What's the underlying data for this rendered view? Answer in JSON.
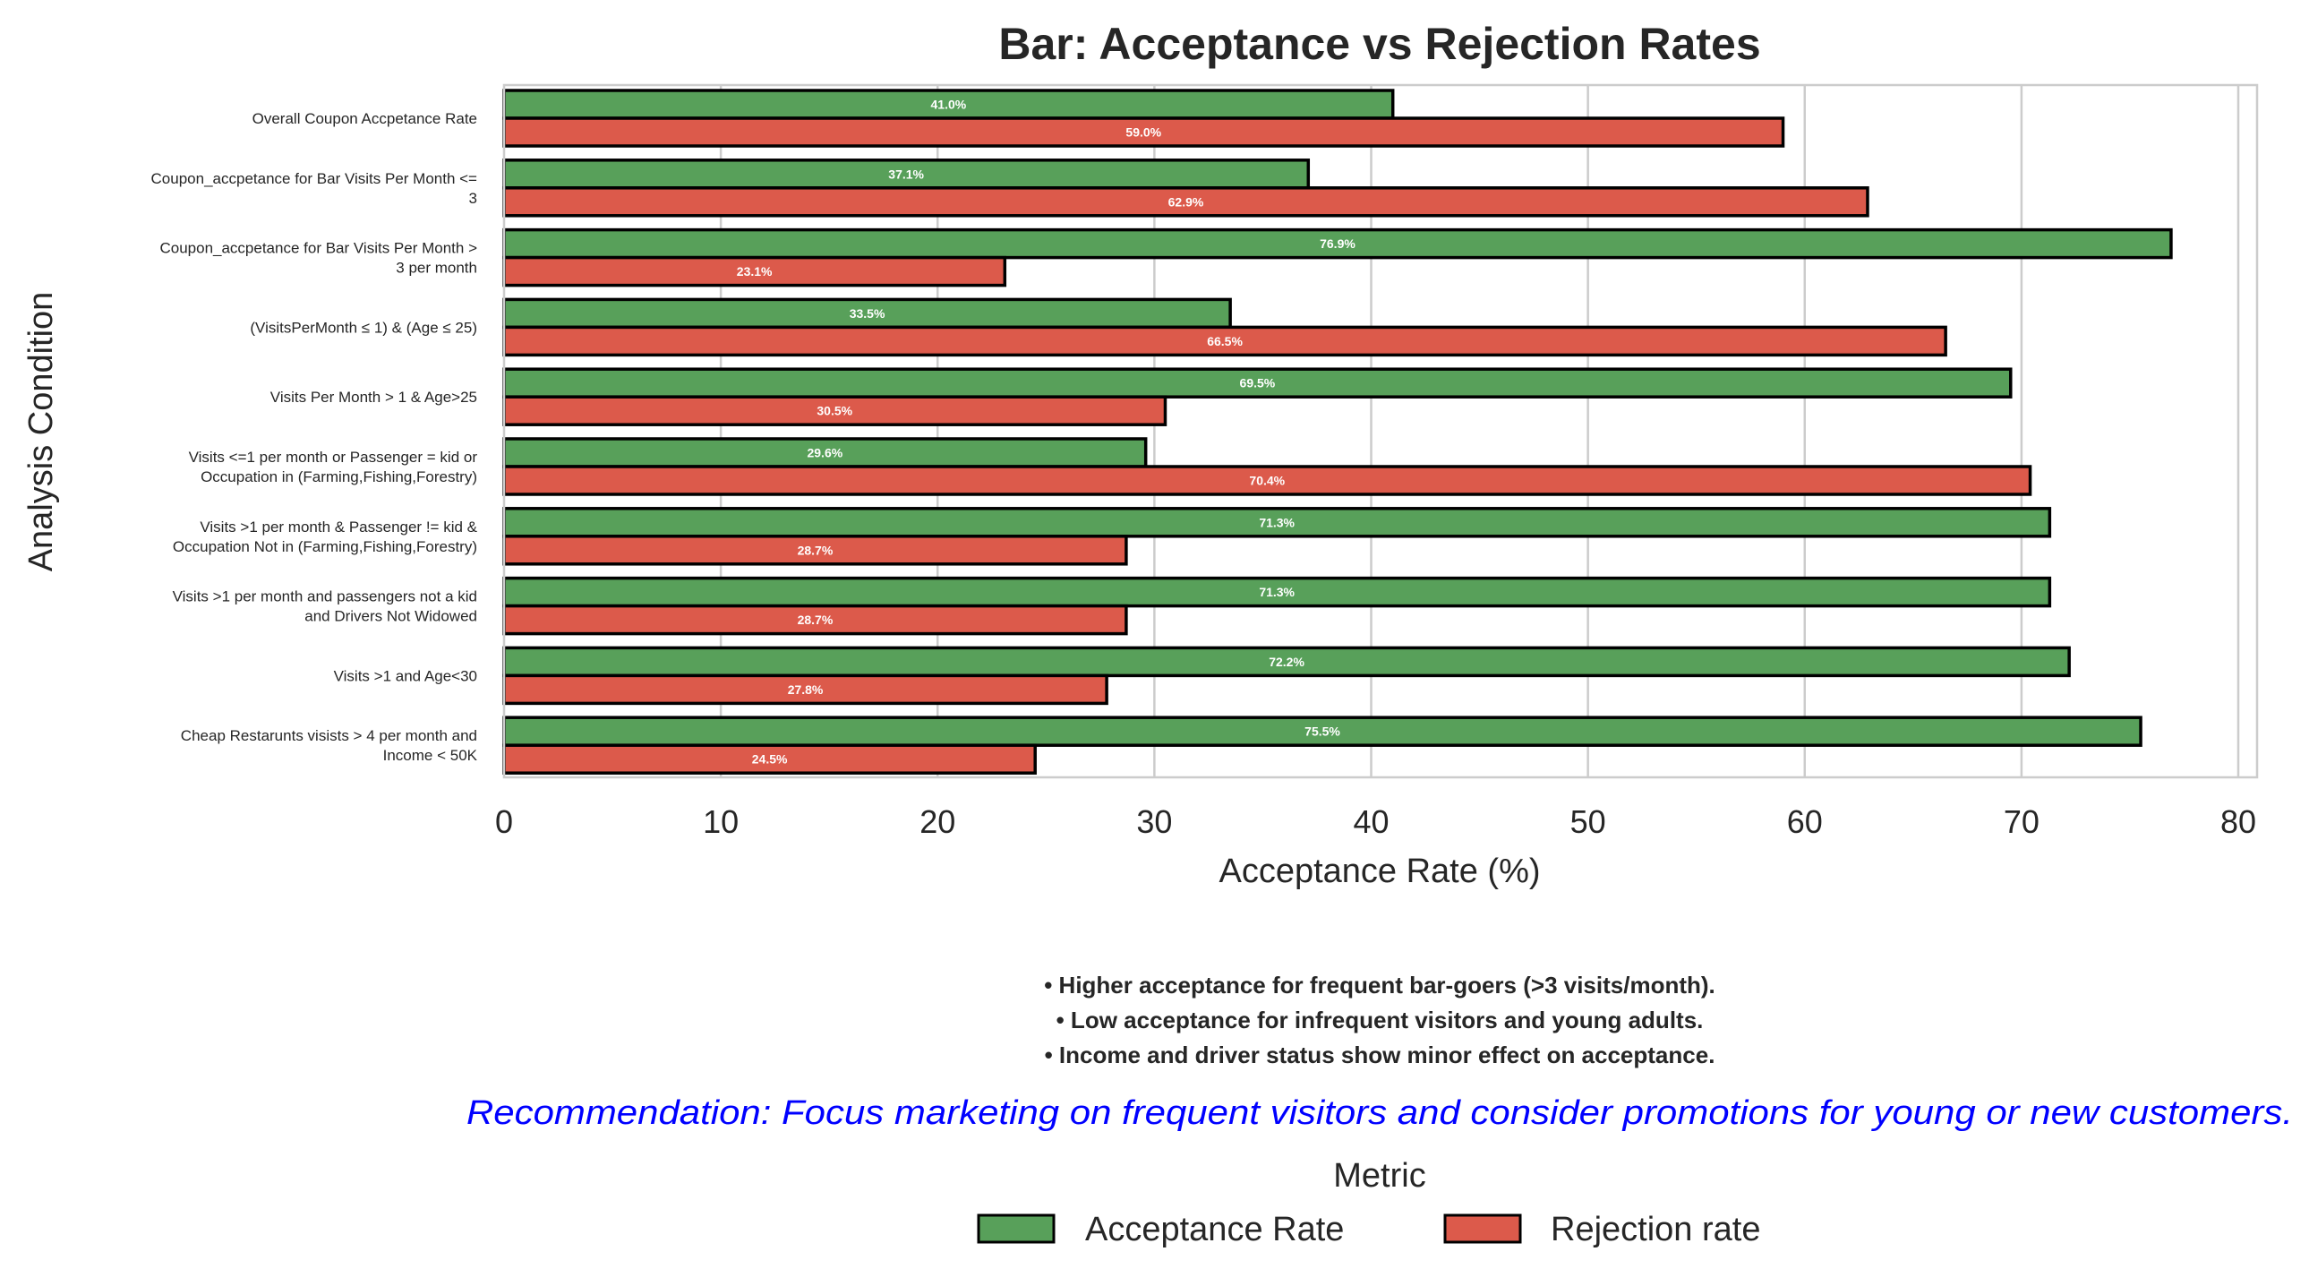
{
  "chart_data": {
    "type": "bar",
    "orientation": "horizontal",
    "title": "Bar: Acceptance vs Rejection Rates",
    "xlabel": "Acceptance Rate (%)",
    "ylabel": "Analysis Condition",
    "xlim": [
      0,
      80
    ],
    "xticks": [
      "0",
      "10",
      "20",
      "30",
      "40",
      "50",
      "60",
      "70",
      "80"
    ],
    "grid": "vertical",
    "categories": [
      [
        "Overall Coupon Accpetance Rate"
      ],
      [
        "Coupon_accpetance for Bar Visits Per Month <=",
        "3"
      ],
      [
        "Coupon_accpetance for Bar Visits Per Month >",
        "3 per month"
      ],
      [
        "(VisitsPerMonth ≤ 1) & (Age ≤ 25)"
      ],
      [
        "Visits Per Month > 1 & Age>25"
      ],
      [
        "Visits <=1 per month or Passenger = kid or",
        "Occupation in (Farming,Fishing,Forestry)"
      ],
      [
        "Visits >1 per month & Passenger != kid &",
        "Occupation Not in (Farming,Fishing,Forestry)"
      ],
      [
        "Visits >1 per month and passengers not a kid",
        "and Drivers Not Widowed"
      ],
      [
        "Visits >1 and Age<30"
      ],
      [
        "Cheap Restarunts visists > 4 per month and",
        "Income < 50K"
      ]
    ],
    "series": [
      {
        "name": "Acceptance Rate",
        "color": "#58a05a",
        "values": [
          41.0,
          37.1,
          76.9,
          33.5,
          69.5,
          29.6,
          71.3,
          71.3,
          72.2,
          75.5
        ],
        "labels": [
          "41.0%",
          "37.1%",
          "76.9%",
          "33.5%",
          "69.5%",
          "29.6%",
          "71.3%",
          "71.3%",
          "72.2%",
          "75.5%"
        ]
      },
      {
        "name": "Rejection rate",
        "color": "#dc5a4b",
        "values": [
          59.0,
          62.9,
          23.1,
          66.5,
          30.5,
          70.4,
          28.7,
          28.7,
          27.8,
          24.5
        ],
        "labels": [
          "59.0%",
          "62.9%",
          "23.1%",
          "66.5%",
          "30.5%",
          "70.4%",
          "28.7%",
          "28.7%",
          "27.8%",
          "24.5%"
        ]
      }
    ],
    "legend": {
      "title": "Metric",
      "placement": "bottom-center"
    }
  },
  "notes": [
    "• Higher acceptance for frequent bar-goers (>3 visits/month).",
    "• Low acceptance for infrequent visitors and young adults.",
    "• Income and driver status show minor effect on acceptance."
  ],
  "recommendation": "Recommendation: Focus marketing on frequent visitors and consider promotions for young or new customers.",
  "colors": {
    "title": "#262626",
    "text": "#262626",
    "recommendation": "#0000ff",
    "grid": "#cccccc",
    "bar_edge": "#000000"
  }
}
